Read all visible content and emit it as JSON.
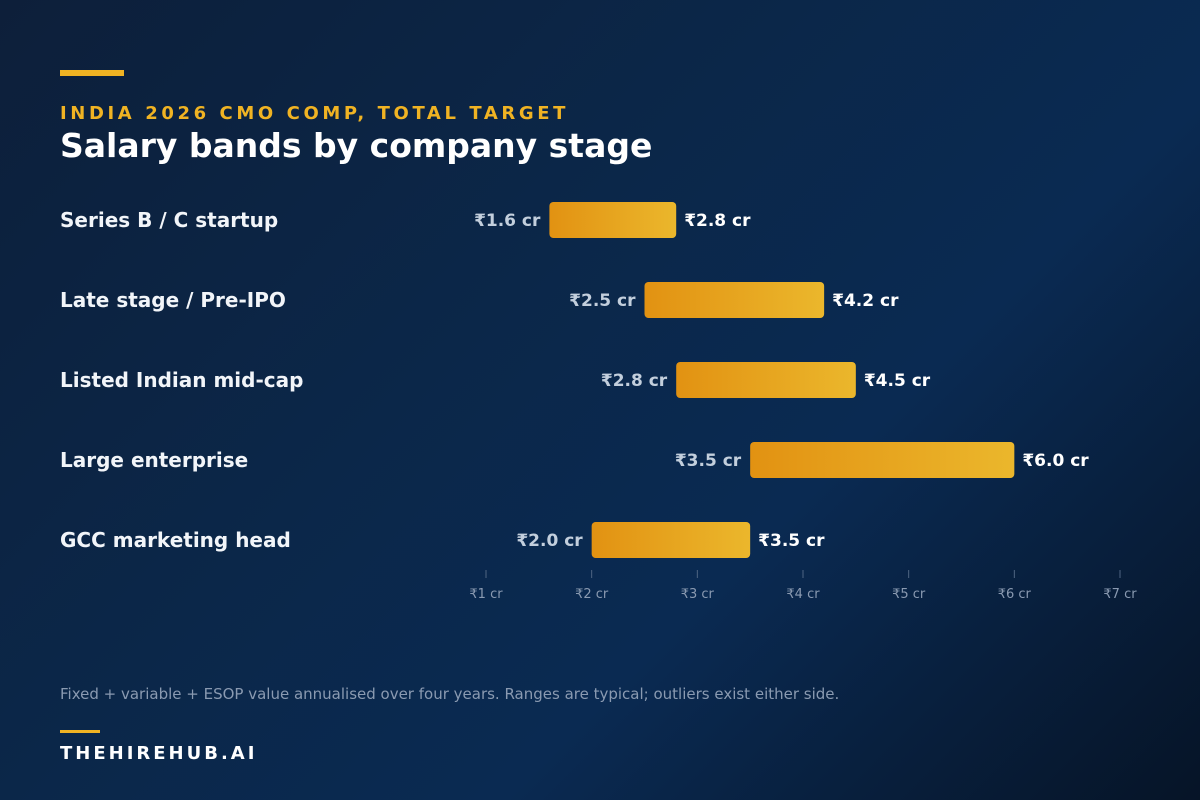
{
  "header": {
    "eyebrow": "INDIA 2026 CMO COMP, TOTAL TARGET",
    "title": "Salary bands by company stage"
  },
  "colors": {
    "accent": "#f0b323",
    "bar_start": "#e29212",
    "bar_end": "#ebb72c",
    "label_low": "#c3cfdd",
    "label_high": "#ffffff",
    "tick": "#8a9ab1"
  },
  "chart_data": {
    "type": "bar",
    "orientation": "horizontal-range",
    "categories": [
      "Series B / C startup",
      "Late stage / Pre-IPO",
      "Listed Indian mid-cap",
      "Large enterprise",
      "GCC marketing head"
    ],
    "low": [
      1.6,
      2.5,
      2.8,
      3.5,
      2.0
    ],
    "high": [
      2.8,
      4.2,
      4.5,
      6.0,
      3.5
    ],
    "low_labels": [
      "₹1.6 cr",
      "₹2.5 cr",
      "₹2.8 cr",
      "₹3.5 cr",
      "₹2.0 cr"
    ],
    "high_labels": [
      "₹2.8 cr",
      "₹4.2 cr",
      "₹4.5 cr",
      "₹6.0 cr",
      "₹3.5 cr"
    ],
    "ticks": [
      1,
      2,
      3,
      4,
      5,
      6,
      7
    ],
    "tick_labels": [
      "₹1 cr",
      "₹2 cr",
      "₹3 cr",
      "₹4 cr",
      "₹5 cr",
      "₹6 cr",
      "₹7 cr"
    ],
    "xlim": [
      1,
      7
    ],
    "grid": false,
    "legend": "none"
  },
  "footer": {
    "note": "Fixed + variable + ESOP value annualised over four years. Ranges are typical; outliers exist either side.",
    "brand": "THEHIREHUB.AI"
  }
}
